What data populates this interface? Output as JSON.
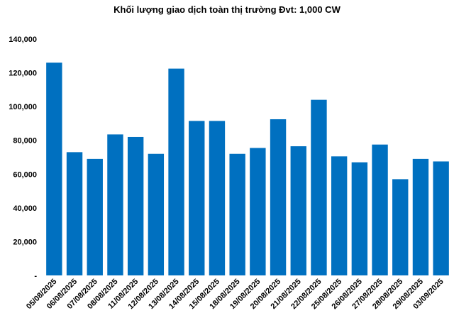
{
  "chart_data": {
    "type": "bar",
    "title": "Khối lượng giao dịch toàn thị trường Đvt: 1,000 CW",
    "xlabel": "",
    "ylabel": "",
    "ylim": [
      0,
      140000
    ],
    "yticks": [
      0,
      20000,
      40000,
      60000,
      80000,
      100000,
      120000,
      140000
    ],
    "ytick_labels": [
      "-",
      "20,000",
      "40,000",
      "60,000",
      "80,000",
      "100,000",
      "120,000",
      "140,000"
    ],
    "grid": false,
    "legend": "none",
    "bar_color": "#0070C0",
    "categories": [
      "05/08/2025",
      "06/08/2025",
      "07/08/2025",
      "08/08/2025",
      "11/08/2025",
      "12/08/2025",
      "13/08/2025",
      "14/08/2025",
      "15/08/2025",
      "18/08/2025",
      "19/08/2025",
      "20/08/2025",
      "21/08/2025",
      "22/08/2025",
      "25/08/2025",
      "26/08/2025",
      "27/08/2025",
      "28/08/2025",
      "29/08/2025",
      "03/09/2025"
    ],
    "values": [
      126000,
      73000,
      69000,
      83500,
      82000,
      72000,
      122500,
      91500,
      91500,
      72000,
      75500,
      92500,
      76500,
      104000,
      70500,
      67000,
      77500,
      57000,
      69000,
      67500
    ]
  }
}
